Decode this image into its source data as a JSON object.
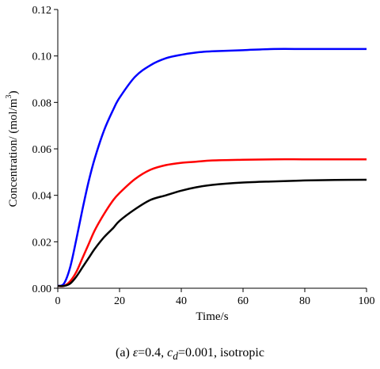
{
  "chart_data": {
    "type": "line",
    "xlabel": "Time/s",
    "ylabel_text": "Concentration/  (mol/m",
    "ylabel_sup": "3",
    "ylabel_close": ")",
    "xlim": [
      0,
      100
    ],
    "ylim": [
      0,
      0.12
    ],
    "x_ticks": [
      "0",
      "20",
      "40",
      "60",
      "80",
      "100"
    ],
    "y_ticks": [
      "0.00",
      "0.02",
      "0.04",
      "0.06",
      "0.08",
      "0.10",
      "0.12"
    ],
    "grid": false,
    "series": [
      {
        "color": "#0000ff",
        "x": [
          0,
          2,
          4,
          6,
          8,
          10,
          12,
          15,
          18,
          20,
          25,
          30,
          35,
          40,
          45,
          50,
          60,
          70,
          80,
          90,
          100
        ],
        "y": [
          0.001,
          0.002,
          0.009,
          0.021,
          0.034,
          0.046,
          0.056,
          0.068,
          0.077,
          0.082,
          0.091,
          0.096,
          0.099,
          0.1005,
          0.1015,
          0.102,
          0.1025,
          0.103,
          0.103,
          0.103,
          0.103
        ]
      },
      {
        "color": "#ff0000",
        "x": [
          0,
          2,
          4,
          6,
          8,
          10,
          12,
          15,
          18,
          20,
          25,
          30,
          35,
          40,
          45,
          50,
          60,
          70,
          80,
          90,
          100
        ],
        "y": [
          0.001,
          0.001,
          0.003,
          0.007,
          0.013,
          0.019,
          0.025,
          0.032,
          0.038,
          0.041,
          0.047,
          0.051,
          0.053,
          0.054,
          0.0545,
          0.055,
          0.0553,
          0.0555,
          0.0555,
          0.0555,
          0.0555
        ]
      },
      {
        "color": "#000000",
        "x": [
          0,
          2,
          4,
          6,
          8,
          10,
          12,
          15,
          18,
          20,
          25,
          30,
          35,
          40,
          45,
          50,
          60,
          70,
          80,
          90,
          100
        ],
        "y": [
          0.001,
          0.001,
          0.002,
          0.005,
          0.009,
          0.013,
          0.017,
          0.022,
          0.026,
          0.029,
          0.034,
          0.038,
          0.04,
          0.042,
          0.0435,
          0.0445,
          0.0455,
          0.046,
          0.0464,
          0.0466,
          0.0467
        ]
      }
    ]
  },
  "caption": {
    "prefix": "(a) ",
    "epsilon_symbol": "ε",
    "epsilon_value": "=0.4, ",
    "cd_base": "c",
    "cd_sub": "d",
    "cd_value": "=0.001, isotropic"
  }
}
